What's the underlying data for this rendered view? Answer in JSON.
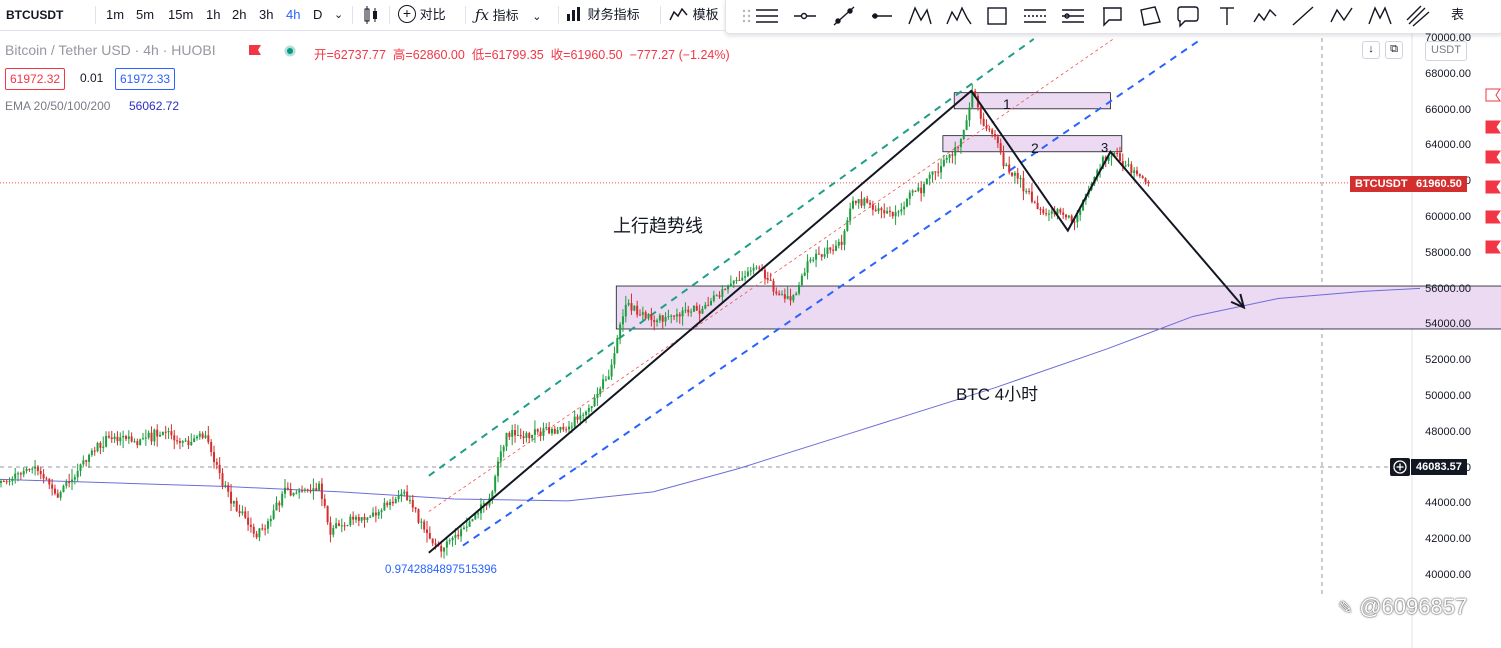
{
  "toolbar": {
    "symbol": "BTCUSDT",
    "intervals": [
      "1m",
      "5m",
      "15m",
      "1h",
      "2h",
      "3h",
      "4h",
      "D"
    ],
    "active_interval": "4h",
    "compare_label": "对比",
    "indicators_label": "指标",
    "financials_label": "财务指标",
    "templates_label": "模板",
    "overflow_label": "表"
  },
  "legend": {
    "title": "Bitcoin / Tether USD · 4h · HUOBI",
    "open": "开=62737.77",
    "high": "高=62860.00",
    "low": "低=61799.35",
    "close": "收=61960.50",
    "change": "−777.27 (−1.24%)",
    "bid": "61972.32",
    "spread": "0.01",
    "ask": "61972.33",
    "ema_label": "EMA 20/50/100/200",
    "ema_value": "56062.72"
  },
  "colors": {
    "up": "#26a69a",
    "up_candle": "#1e9e3e",
    "down": "#ef5350",
    "down_candle": "#d32f2f",
    "ema": "#6d6dd8",
    "channel_top": "#1e9e88",
    "channel_bottom": "#2962ff",
    "zone_fill": "#ecd9f2",
    "price_tag": "#d32f2f"
  },
  "chart_data": {
    "type": "candlestick",
    "x_unit": "4h bar index",
    "ylim": [
      39000,
      70000
    ],
    "y_ticks": [
      "70000.00",
      "68000.00",
      "66000.00",
      "64000.00",
      "62000.00",
      "60000.00",
      "58000.00",
      "56000.00",
      "54000.00",
      "52000.00",
      "50000.00",
      "48000.00",
      "46000.00",
      "44000.00",
      "42000.00",
      "40000.00"
    ],
    "last_price": {
      "symbol": "BTCUSDT",
      "value": "61960.50"
    },
    "crosshair_price": "46083.57",
    "ema200": [
      [
        0,
        45400
      ],
      [
        40,
        45200
      ],
      [
        80,
        45000
      ],
      [
        120,
        44700
      ],
      [
        160,
        44300
      ],
      [
        200,
        44200
      ],
      [
        230,
        44700
      ],
      [
        260,
        46000
      ],
      [
        300,
        48000
      ],
      [
        350,
        50500
      ],
      [
        390,
        52700
      ],
      [
        420,
        54500
      ],
      [
        450,
        55500
      ],
      [
        480,
        55900
      ],
      [
        500,
        56070
      ]
    ],
    "zones": [
      {
        "x0": 217,
        "x1": 554,
        "y0": 53800,
        "y1": 56200
      },
      {
        "x0": 336,
        "x1": 391,
        "y0": 66100,
        "y1": 67000
      },
      {
        "x0": 332,
        "x1": 395,
        "y0": 63700,
        "y1": 64600
      }
    ],
    "zone_labels": [
      "1",
      "2",
      "3"
    ],
    "trend_path": [
      [
        151,
        41300
      ],
      [
        342,
        67100
      ],
      [
        376,
        59300
      ],
      [
        391,
        63700
      ],
      [
        438,
        55000
      ]
    ],
    "channel_top": [
      [
        151,
        45600
      ],
      [
        364,
        70000
      ]
    ],
    "channel_mid": [
      [
        151,
        43600
      ],
      [
        392,
        70000
      ]
    ],
    "channel_bottom": [
      [
        163,
        41700
      ],
      [
        423,
        70000
      ]
    ],
    "fib_label": "0.9742884897515396",
    "annotations": {
      "trend": "上行趋势线",
      "timeframe": "BTC 4小时"
    },
    "candles_seed": 7
  },
  "watermark": "@6096857"
}
